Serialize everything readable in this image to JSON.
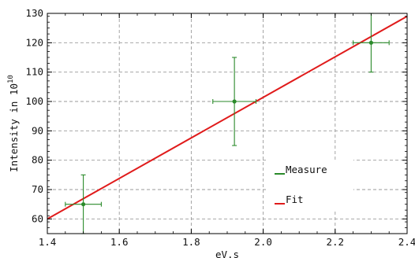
{
  "chart_data": {
    "type": "scatter",
    "title": "",
    "xlabel": "eV.s",
    "ylabel_base": "Intensity in 10",
    "ylabel_exponent": "10",
    "xlim": [
      1.4,
      2.4
    ],
    "ylim": [
      55,
      130
    ],
    "x_ticks": [
      "1.4",
      "1.6",
      "1.8",
      "2.0",
      "2.2",
      "2.4"
    ],
    "y_ticks": [
      "60",
      "70",
      "80",
      "90",
      "100",
      "110",
      "120",
      "130"
    ],
    "grid": true,
    "legend_position": "lower-right",
    "series": [
      {
        "name": "Measure",
        "kind": "points-with-errorbars",
        "color": "#2a8a2a",
        "points": [
          {
            "x": 1.5,
            "y": 65,
            "xerr": 0.05,
            "yerr": 10
          },
          {
            "x": 1.92,
            "y": 100,
            "xerr": 0.06,
            "yerr": 15
          },
          {
            "x": 2.3,
            "y": 120,
            "xerr": 0.05,
            "yerr": 10
          }
        ]
      },
      {
        "name": "Fit",
        "kind": "line",
        "color": "#e01b1b",
        "points": [
          {
            "x": 1.4,
            "y": 60
          },
          {
            "x": 2.4,
            "y": 129
          }
        ]
      }
    ]
  }
}
